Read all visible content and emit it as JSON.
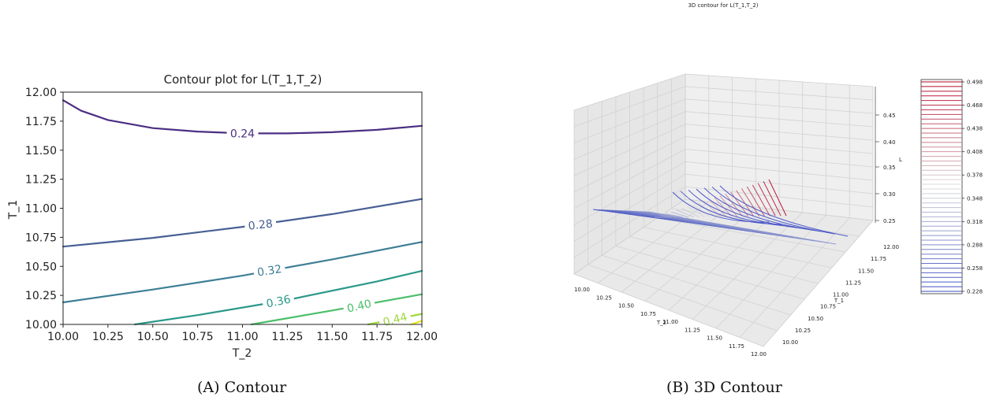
{
  "chart_data": [
    {
      "type": "contour",
      "title": "Contour plot for L(T_1,T_2)",
      "xlabel": "T_2",
      "ylabel": "T_1",
      "xlim": [
        10.0,
        12.0
      ],
      "ylim": [
        10.0,
        12.0
      ],
      "xticks": [
        "10.00",
        "10.25",
        "10.50",
        "10.75",
        "11.00",
        "11.25",
        "11.50",
        "11.75",
        "12.00"
      ],
      "yticks": [
        "10.00",
        "10.25",
        "10.50",
        "10.75",
        "11.00",
        "11.25",
        "11.50",
        "11.75",
        "12.00"
      ],
      "levels": [
        {
          "label": "0.24",
          "color": "#4b2e83",
          "points": [
            [
              10.0,
              11.93
            ],
            [
              10.1,
              11.84
            ],
            [
              10.25,
              11.76
            ],
            [
              10.5,
              11.69
            ],
            [
              10.75,
              11.66
            ],
            [
              11.0,
              11.645
            ],
            [
              11.25,
              11.645
            ],
            [
              11.5,
              11.655
            ],
            [
              11.75,
              11.675
            ],
            [
              12.0,
              11.71
            ]
          ]
        },
        {
          "label": "0.28",
          "color": "#475f94",
          "points": [
            [
              10.0,
              10.67
            ],
            [
              10.5,
              10.745
            ],
            [
              11.0,
              10.84
            ],
            [
              11.5,
              10.95
            ],
            [
              12.0,
              11.08
            ]
          ]
        },
        {
          "label": "0.32",
          "color": "#3d7f95",
          "points": [
            [
              10.0,
              10.19
            ],
            [
              10.5,
              10.3
            ],
            [
              11.0,
              10.42
            ],
            [
              11.5,
              10.56
            ],
            [
              12.0,
              10.71
            ]
          ]
        },
        {
          "label": "0.36",
          "color": "#2a9889",
          "points": [
            [
              10.4,
              10.0
            ],
            [
              10.75,
              10.08
            ],
            [
              11.25,
              10.21
            ],
            [
              11.75,
              10.37
            ],
            [
              12.0,
              10.46
            ]
          ]
        },
        {
          "label": "0.40",
          "color": "#4cbf6a",
          "points": [
            [
              11.05,
              10.0
            ],
            [
              11.5,
              10.12
            ],
            [
              12.0,
              10.26
            ]
          ]
        },
        {
          "label": "0.44",
          "color": "#9dd93b",
          "points": [
            [
              11.7,
              10.0
            ],
            [
              12.0,
              10.09
            ]
          ]
        },
        {
          "label": "",
          "color": "#e8e61e",
          "points": [
            [
              11.94,
              10.0
            ],
            [
              12.0,
              10.03
            ]
          ]
        }
      ],
      "contour_labels": [
        {
          "text": "0.24",
          "x": 11.0,
          "y": 11.645,
          "angle": 0
        },
        {
          "text": "0.28",
          "x": 11.1,
          "y": 10.86,
          "angle": -6
        },
        {
          "text": "0.32",
          "x": 11.15,
          "y": 10.465,
          "angle": -9
        },
        {
          "text": "0.36",
          "x": 11.2,
          "y": 10.2,
          "angle": -12
        },
        {
          "text": "0.40",
          "x": 11.65,
          "y": 10.16,
          "angle": -13
        },
        {
          "text": "0.44",
          "x": 11.85,
          "y": 10.045,
          "angle": -14
        }
      ]
    },
    {
      "type": "3d-contour",
      "title": "3D contour for L(T_1,T_2)",
      "xlabel": "T_2",
      "ylabel": "T_1",
      "zlabel": "L",
      "x_ticks": [
        "10.00",
        "10.25",
        "10.50",
        "10.75",
        "11.00",
        "11.25",
        "11.50",
        "11.75",
        "12.00"
      ],
      "y_ticks": [
        "10.00",
        "10.25",
        "10.50",
        "10.75",
        "11.00",
        "11.25",
        "11.50",
        "11.75",
        "12.00"
      ],
      "z_ticks": [
        "0.25",
        "0.30",
        "0.35",
        "0.40",
        "0.45"
      ],
      "colorbar_ticks": [
        "0.498",
        "0.468",
        "0.438",
        "0.408",
        "0.378",
        "0.348",
        "0.318",
        "0.288",
        "0.258",
        "0.228"
      ],
      "colorbar_range": [
        0.228,
        0.5
      ],
      "colormap": [
        "#3b4cc0",
        "#dddddd",
        "#b40426"
      ]
    }
  ],
  "captions": {
    "a": "(A) Contour",
    "b": "(B) 3D Contour"
  }
}
